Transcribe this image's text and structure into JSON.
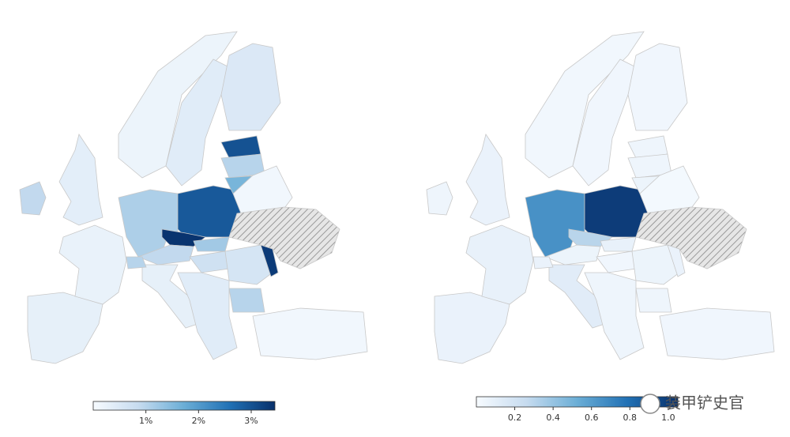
{
  "chart_data": [
    {
      "type": "choropleth",
      "values": [
        0.3,
        0.25,
        0.35,
        0.9,
        1.1,
        2.9,
        3.4,
        1.2,
        0.9,
        0.7,
        0.6,
        3.3,
        1.0,
        0.3,
        0.4,
        0.1,
        0.2,
        0.4,
        0.5,
        3.0,
        1.0,
        1.6,
        0.1,
        null,
        1.0
      ],
      "colorscale": [
        "#f7fbff",
        "#c6dbef",
        "#6baed6",
        "#2171b5",
        "#08306b"
      ],
      "clim": [
        0,
        3.45
      ],
      "cticks": [
        {
          "value": 1,
          "label": "1%"
        },
        {
          "value": 2,
          "label": "2%"
        },
        {
          "value": 3,
          "label": "3%"
        }
      ],
      "missing_hatch": true
    },
    {
      "type": "choropleth",
      "values": [
        0.07,
        0.08,
        0.07,
        0.05,
        0.65,
        1.0,
        0.3,
        0.08,
        0.06,
        0.04,
        0.06,
        0.07,
        0.05,
        0.12,
        0.05,
        0.04,
        0.03,
        0.04,
        0.04,
        0.05,
        0.05,
        0.06,
        0.02,
        null,
        0.07
      ],
      "colorscale": [
        "#f7fbff",
        "#c6dbef",
        "#6baed6",
        "#2171b5",
        "#08306b"
      ],
      "clim": [
        0,
        1.05
      ],
      "cticks": [
        0.2,
        0.4,
        0.6,
        0.8,
        {
          "value": 1,
          "label": "1.0"
        }
      ],
      "missing_hatch": true
    }
  ],
  "watermark": "装甲铲史官"
}
